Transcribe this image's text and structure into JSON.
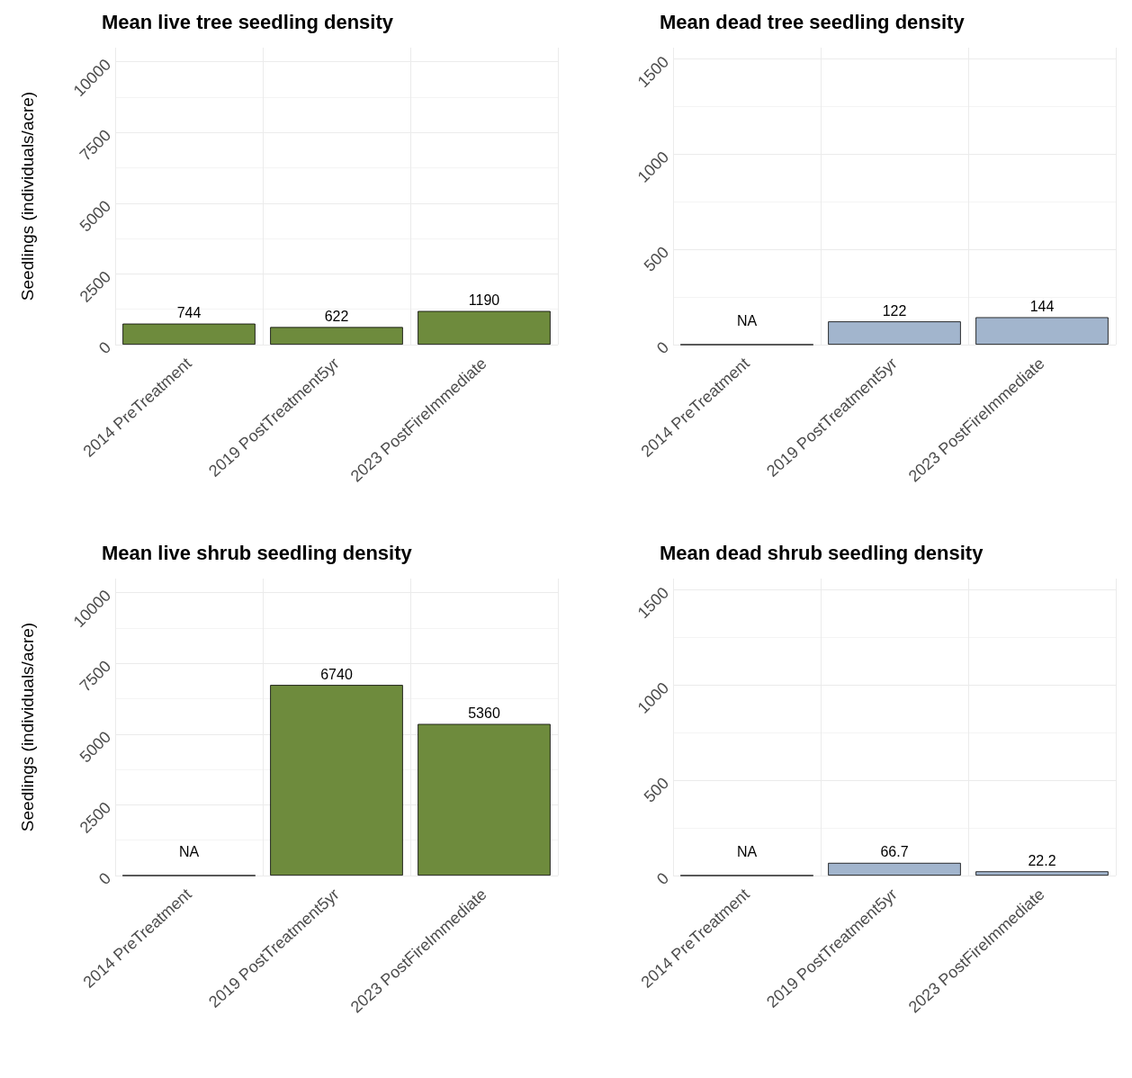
{
  "chart_data": [
    {
      "type": "bar",
      "title": "Mean live tree seedling density",
      "ylabel": "Seedlings (individuals/acre)",
      "categories": [
        "2014 PreTreatment",
        "2019 PostTreatment5yr",
        "2023 PostFireImmediate"
      ],
      "values": [
        744,
        622,
        1190
      ],
      "value_labels": [
        "744",
        "622",
        "1190"
      ],
      "color": "#6e8b3d",
      "ylim": [
        0,
        10500
      ],
      "yticks": [
        0,
        2500,
        5000,
        7500,
        10000
      ],
      "grid": true
    },
    {
      "type": "bar",
      "title": "Mean dead tree seedling density",
      "categories": [
        "2014 PreTreatment",
        "2019 PostTreatment5yr",
        "2023 PostFireImmediate"
      ],
      "values": [
        null,
        122,
        144
      ],
      "value_labels": [
        "NA",
        "122",
        "144"
      ],
      "color": "#a2b5cd",
      "ylim": [
        0,
        1560
      ],
      "yticks": [
        0,
        500,
        1000,
        1500
      ],
      "grid": true
    },
    {
      "type": "bar",
      "title": "Mean live shrub seedling density",
      "ylabel": "Seedlings (individuals/acre)",
      "categories": [
        "2014 PreTreatment",
        "2019 PostTreatment5yr",
        "2023 PostFireImmediate"
      ],
      "values": [
        null,
        6740,
        5360
      ],
      "value_labels": [
        "NA",
        "6740",
        "5360"
      ],
      "color": "#6e8b3d",
      "ylim": [
        0,
        10500
      ],
      "yticks": [
        0,
        2500,
        5000,
        7500,
        10000
      ],
      "grid": true
    },
    {
      "type": "bar",
      "title": "Mean dead shrub seedling density",
      "categories": [
        "2014 PreTreatment",
        "2019 PostTreatment5yr",
        "2023 PostFireImmediate"
      ],
      "values": [
        null,
        66.7,
        22.2
      ],
      "value_labels": [
        "NA",
        "66.7",
        "22.2"
      ],
      "color": "#a2b5cd",
      "ylim": [
        0,
        1560
      ],
      "yticks": [
        0,
        500,
        1000,
        1500
      ],
      "grid": true
    }
  ]
}
